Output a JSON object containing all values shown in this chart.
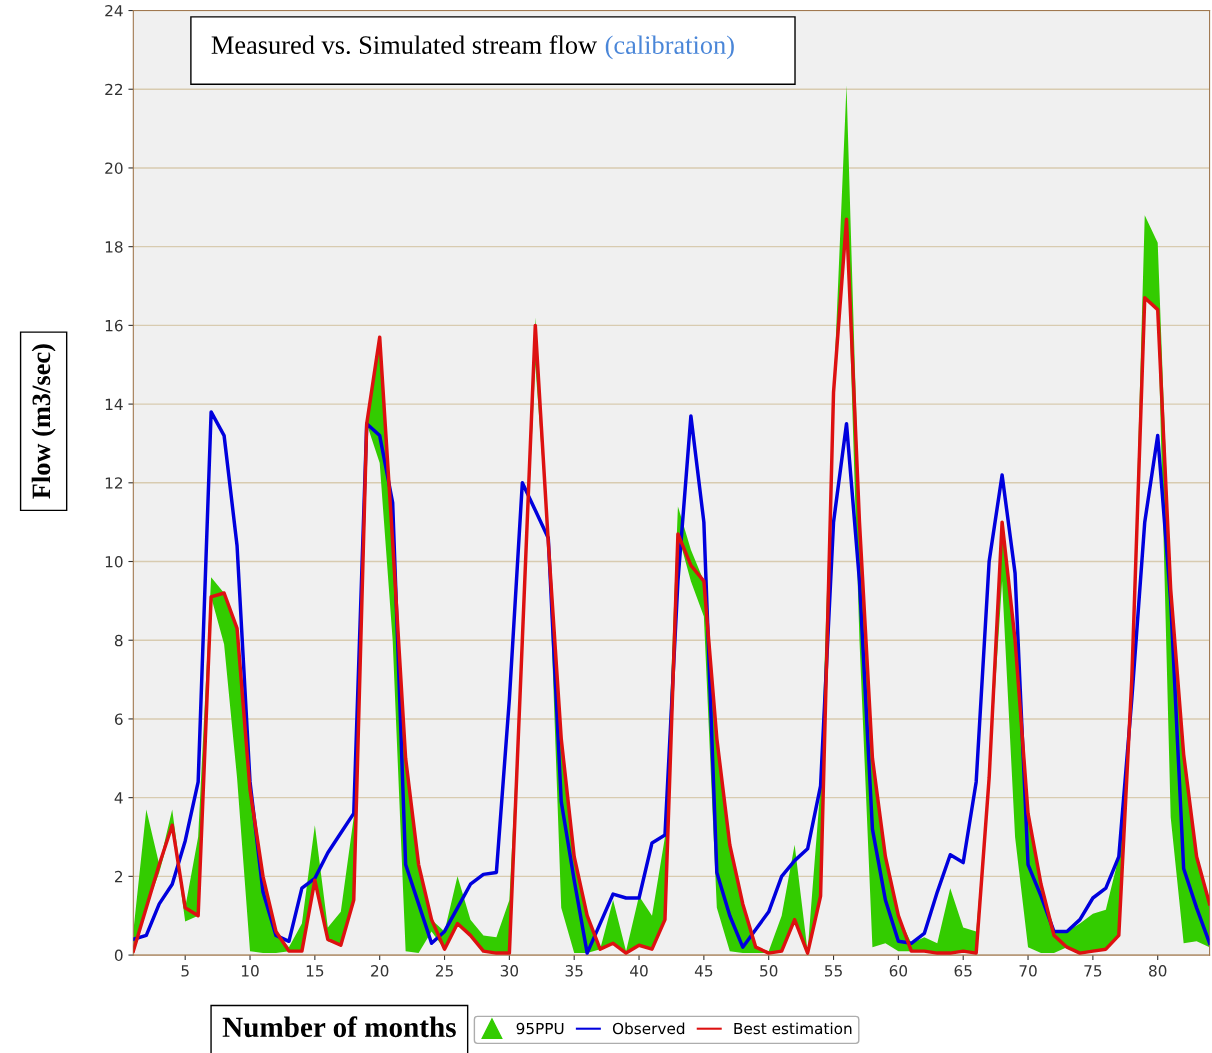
{
  "chart_data": {
    "type": "line",
    "title": "Measured vs. Simulated stream flow",
    "subtitle": "(calibration)",
    "xlabel": "Number of months",
    "ylabel": "Flow (m3/sec)",
    "x": [
      1,
      2,
      3,
      4,
      5,
      6,
      7,
      8,
      9,
      10,
      11,
      12,
      13,
      14,
      15,
      16,
      17,
      18,
      19,
      20,
      21,
      22,
      23,
      24,
      25,
      26,
      27,
      28,
      29,
      30,
      31,
      32,
      33,
      34,
      35,
      36,
      37,
      38,
      39,
      40,
      41,
      42,
      43,
      44,
      45,
      46,
      47,
      48,
      49,
      50,
      51,
      52,
      53,
      54,
      55,
      56,
      57,
      58,
      59,
      60,
      61,
      62,
      63,
      64,
      65,
      66,
      67,
      68,
      69,
      70,
      71,
      72,
      73,
      74,
      75,
      76,
      77,
      78,
      79,
      80,
      81,
      82,
      83,
      84
    ],
    "series": [
      {
        "name": "95PPU",
        "type": "line",
        "color": "#33cc00",
        "values": [
          null,
          null,
          null,
          null,
          null,
          null,
          null,
          null,
          null,
          null,
          null,
          null,
          null,
          null,
          null,
          null,
          null,
          null,
          null,
          null,
          null,
          null,
          null,
          null,
          null,
          null,
          null,
          null,
          null,
          null,
          null,
          null,
          null,
          null,
          null,
          null,
          null,
          null,
          null,
          null,
          null,
          null,
          null,
          null,
          null,
          null,
          null,
          null,
          null,
          null,
          null,
          null,
          null,
          null,
          null,
          null,
          null,
          null,
          null,
          null,
          null,
          null,
          null,
          null,
          null,
          null,
          null,
          null,
          null,
          null,
          null,
          null,
          null,
          null,
          null,
          null,
          null,
          null,
          null,
          null,
          null,
          null,
          null,
          null
        ],
        "lower": [
          0.05,
          1.2,
          2.1,
          3.3,
          0.85,
          1.0,
          9.1,
          7.9,
          4.5,
          0.1,
          0.05,
          0.05,
          0.1,
          0.1,
          1.9,
          0.35,
          0.25,
          1.4,
          13.5,
          12.5,
          8.0,
          0.1,
          0.05,
          0.6,
          0.15,
          0.8,
          0.5,
          0.1,
          0.05,
          0.05,
          8.0,
          15.0,
          10.5,
          1.2,
          0.05,
          0.05,
          0.15,
          0.3,
          0.05,
          0.25,
          0.15,
          0.9,
          10.7,
          9.5,
          8.6,
          1.2,
          0.1,
          0.05,
          0.05,
          0.05,
          0.1,
          0.9,
          0.05,
          1.5,
          14.3,
          18.7,
          8.0,
          0.2,
          0.3,
          0.1,
          0.1,
          0.1,
          0.05,
          0.05,
          0.1,
          0.05,
          4.5,
          9.5,
          3.0,
          0.2,
          0.05,
          0.05,
          0.2,
          0.05,
          0.1,
          0.15,
          0.5,
          7.0,
          16.7,
          16.4,
          3.5,
          0.3,
          0.35,
          0.2
        ],
        "upper": [
          0.6,
          3.7,
          2.3,
          3.7,
          1.2,
          3.0,
          9.6,
          9.2,
          8.3,
          4.2,
          2.0,
          0.6,
          0.2,
          0.8,
          3.3,
          0.7,
          1.1,
          3.5,
          13.5,
          15.7,
          10.5,
          5.0,
          2.3,
          0.9,
          0.6,
          2.0,
          0.9,
          0.5,
          0.45,
          1.4,
          8.0,
          16.2,
          10.5,
          5.5,
          2.5,
          1.0,
          0.15,
          1.4,
          0.1,
          1.5,
          1.0,
          3.0,
          11.4,
          10.3,
          9.5,
          5.5,
          2.8,
          1.3,
          0.2,
          0.1,
          1.0,
          2.8,
          0.1,
          4.3,
          14.3,
          22.1,
          11.0,
          5.0,
          2.5,
          1.0,
          0.3,
          0.45,
          0.3,
          1.7,
          0.7,
          0.6,
          4.5,
          11.0,
          8.0,
          3.6,
          1.8,
          0.6,
          0.6,
          0.8,
          1.05,
          1.15,
          2.5,
          7.0,
          18.8,
          18.1,
          9.3,
          5.1,
          2.5,
          1.3
        ]
      },
      {
        "name": "Observed",
        "color": "#0000dd",
        "values": [
          0.4,
          0.5,
          1.3,
          1.8,
          2.9,
          4.4,
          13.8,
          13.2,
          10.4,
          4.4,
          1.6,
          0.5,
          0.35,
          1.7,
          1.95,
          2.6,
          3.1,
          3.6,
          13.5,
          13.2,
          11.5,
          2.3,
          1.3,
          0.3,
          0.6,
          1.2,
          1.8,
          2.05,
          2.1,
          6.5,
          12.0,
          11.3,
          10.6,
          3.9,
          1.9,
          0.05,
          0.8,
          1.55,
          1.45,
          1.45,
          2.85,
          3.05,
          9.5,
          13.7,
          11.0,
          2.1,
          1.0,
          0.2,
          0.65,
          1.1,
          2.0,
          2.4,
          2.7,
          4.3,
          11.0,
          13.5,
          9.5,
          3.2,
          1.4,
          0.35,
          0.3,
          0.55,
          1.6,
          2.55,
          2.35,
          4.4,
          10.0,
          12.2,
          9.7,
          2.3,
          1.5,
          0.6,
          0.6,
          0.9,
          1.45,
          1.7,
          2.5,
          6.5,
          11.0,
          13.2,
          9.0,
          2.2,
          1.2,
          0.3
        ]
      },
      {
        "name": "Best estimation",
        "color": "#dd1111",
        "values": [
          0.1,
          1.2,
          2.3,
          3.3,
          1.2,
          1.0,
          9.1,
          9.2,
          8.3,
          4.2,
          2.0,
          0.6,
          0.1,
          0.1,
          1.9,
          0.4,
          0.25,
          1.4,
          13.5,
          15.7,
          10.5,
          5.0,
          2.3,
          0.9,
          0.15,
          0.8,
          0.5,
          0.1,
          0.05,
          0.05,
          8.0,
          16.0,
          10.5,
          5.5,
          2.5,
          1.0,
          0.15,
          0.3,
          0.05,
          0.25,
          0.15,
          0.9,
          10.7,
          9.9,
          9.5,
          5.5,
          2.8,
          1.3,
          0.2,
          0.05,
          0.1,
          0.9,
          0.05,
          1.5,
          14.3,
          18.7,
          11.0,
          5.0,
          2.5,
          1.0,
          0.1,
          0.1,
          0.05,
          0.05,
          0.1,
          0.05,
          4.5,
          11.0,
          8.0,
          3.6,
          1.8,
          0.5,
          0.2,
          0.05,
          0.1,
          0.15,
          0.5,
          7.0,
          16.7,
          16.4,
          9.3,
          5.1,
          2.5,
          1.3
        ]
      }
    ],
    "xlim": [
      1,
      84
    ],
    "xticks": [
      5,
      10,
      15,
      20,
      25,
      30,
      35,
      40,
      45,
      50,
      55,
      60,
      65,
      70,
      75,
      80
    ],
    "ylim": [
      0,
      24
    ],
    "yticks": [
      0,
      2,
      4,
      6,
      8,
      10,
      12,
      14,
      16,
      18,
      20,
      22,
      24
    ],
    "grid": "y",
    "legend": "bottom",
    "marker": "none",
    "line_style": "solid"
  }
}
